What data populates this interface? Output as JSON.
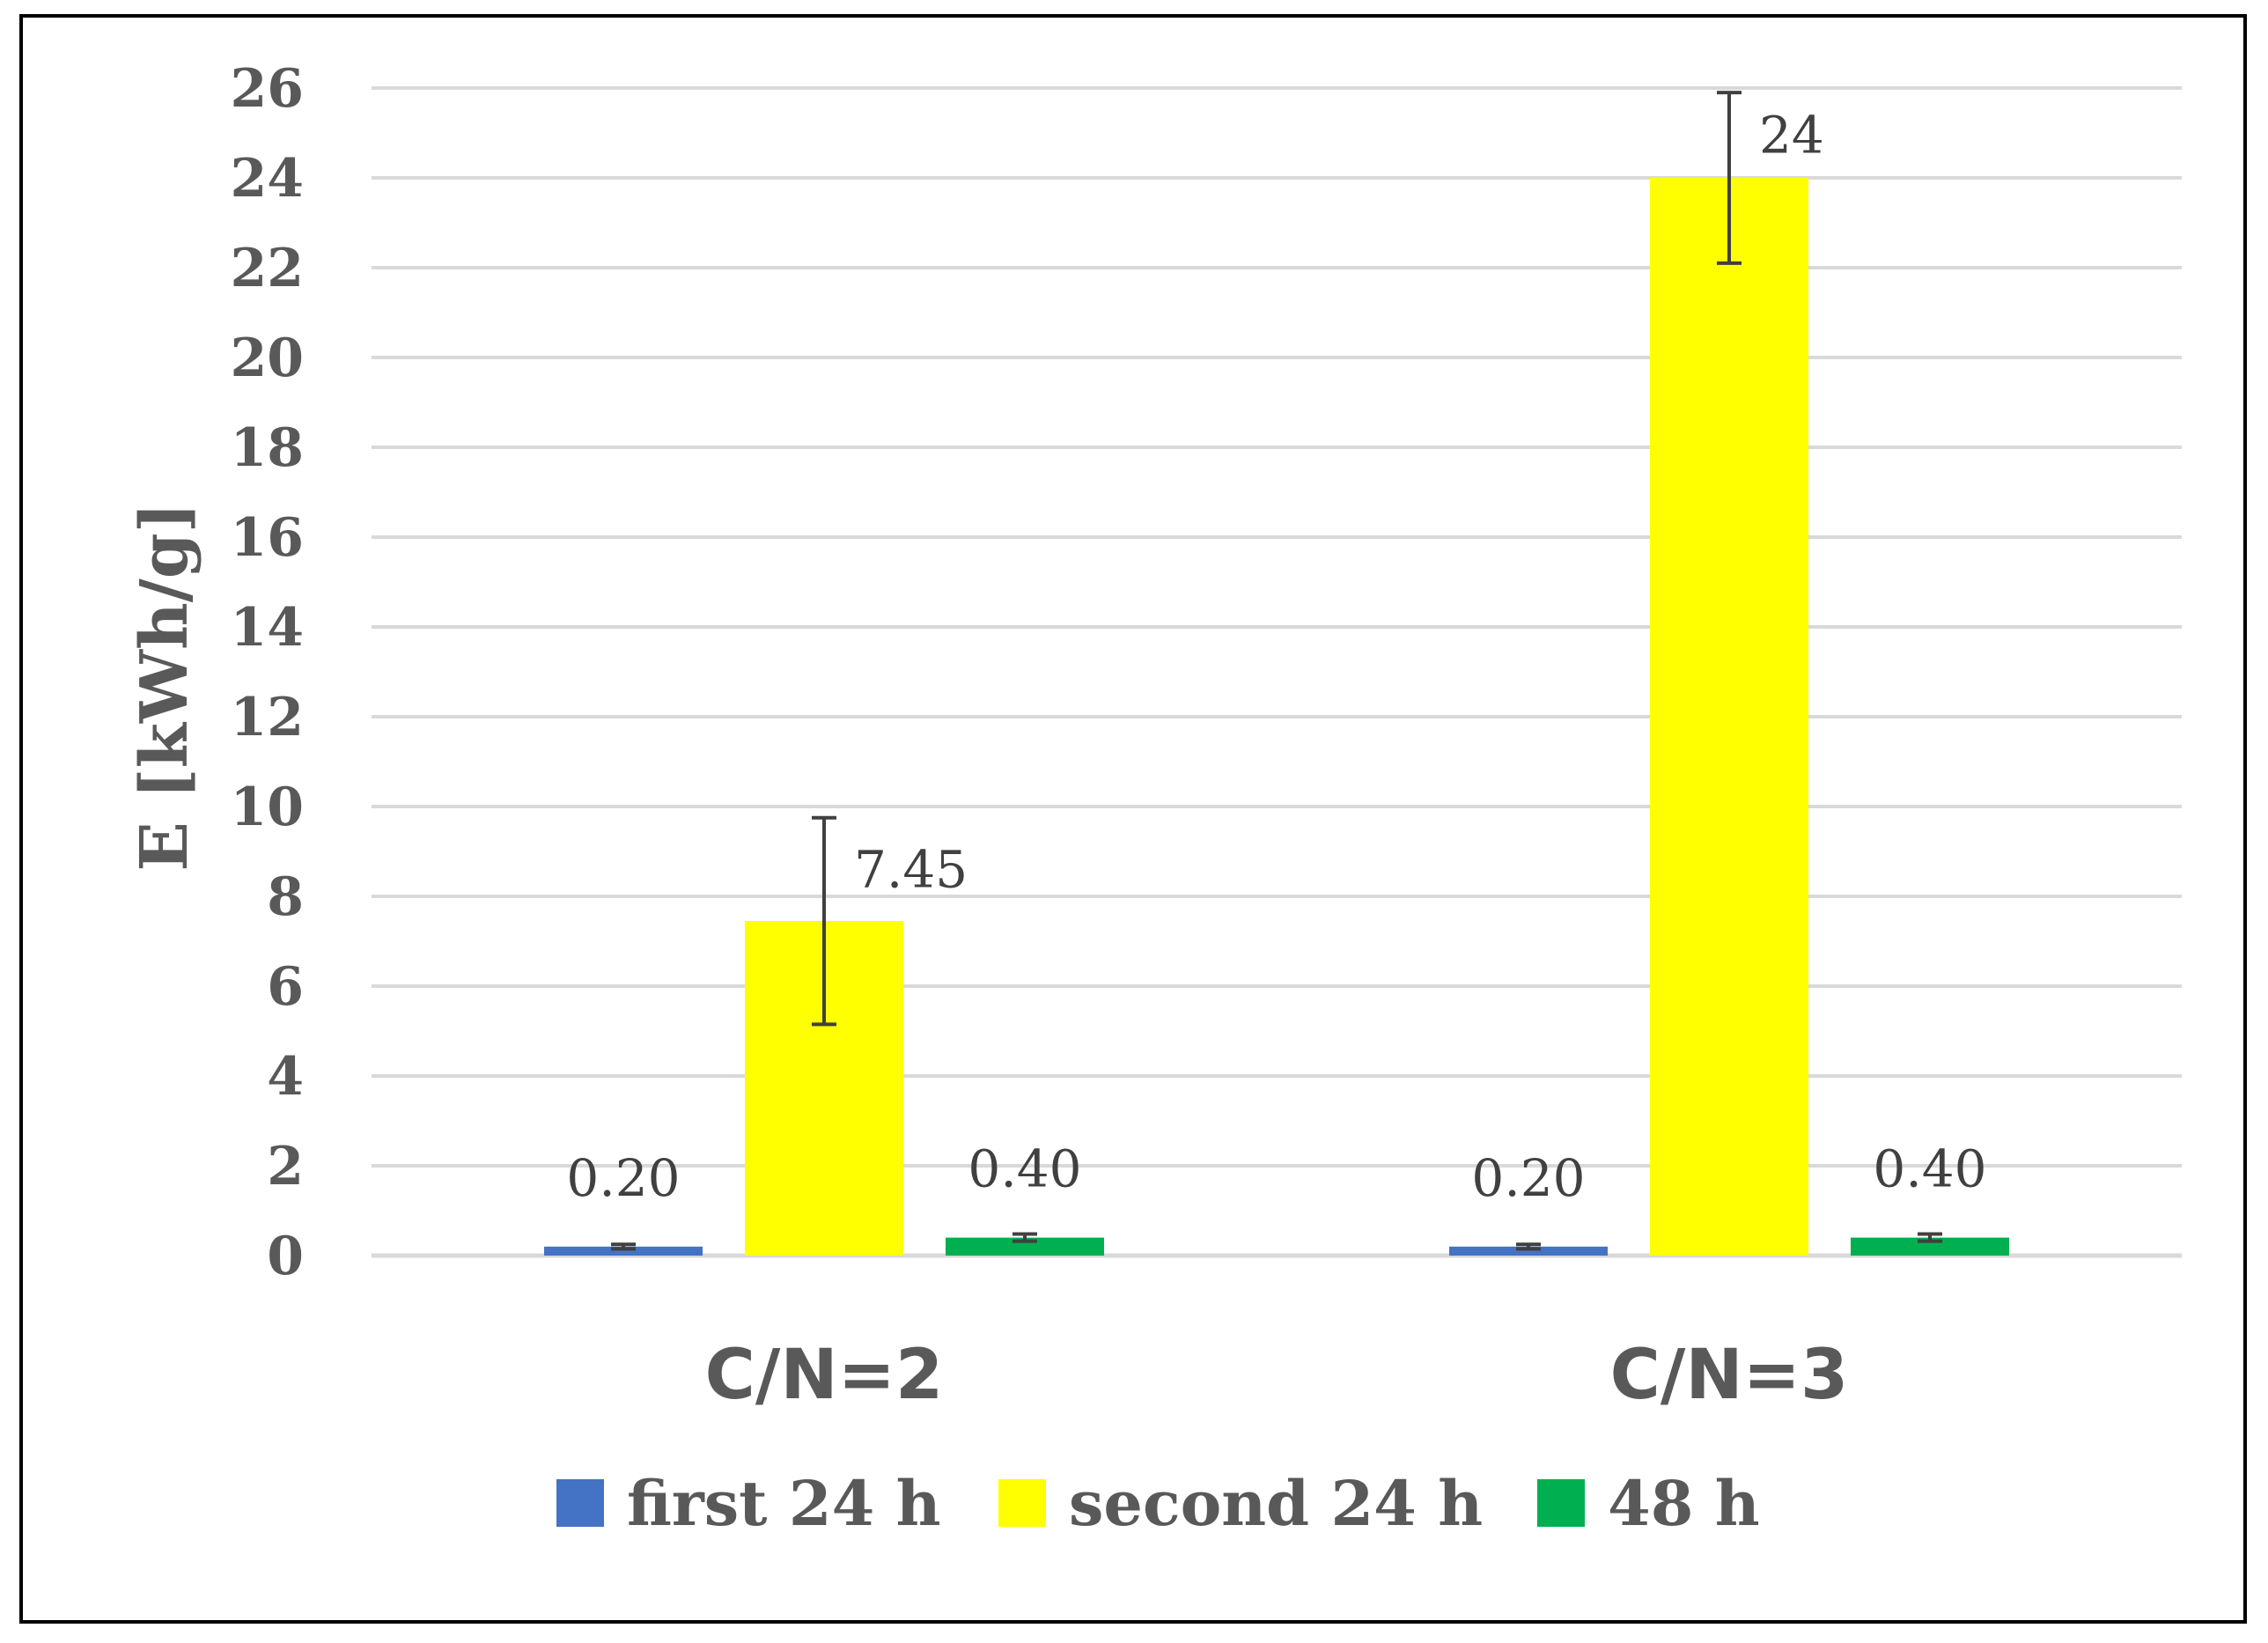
{
  "chart_data": {
    "type": "bar",
    "title": "",
    "xlabel": "",
    "ylabel": "E [kWh/g]",
    "categories": [
      "C/N=2",
      "C/N=3"
    ],
    "series": [
      {
        "name": "first 24 h",
        "color": "#4472C4",
        "values": [
          0.2,
          0.2
        ],
        "errors": [
          0.05,
          0.05
        ],
        "labels": [
          "0.20",
          "0.20"
        ]
      },
      {
        "name": "second 24 h",
        "color": "#FFFF00",
        "values": [
          7.45,
          24
        ],
        "errors": [
          2.3,
          1.9
        ],
        "labels": [
          "7.45",
          "24"
        ]
      },
      {
        "name": "48 h",
        "color": "#00B050",
        "values": [
          0.4,
          0.4
        ],
        "errors": [
          0.08,
          0.08
        ],
        "labels": [
          "0.40",
          "0.40"
        ]
      }
    ],
    "ylim": [
      0,
      26
    ],
    "yticks": [
      0,
      2,
      4,
      6,
      8,
      10,
      12,
      14,
      16,
      18,
      20,
      22,
      24,
      26
    ],
    "grid": true,
    "legend_position": "bottom"
  }
}
